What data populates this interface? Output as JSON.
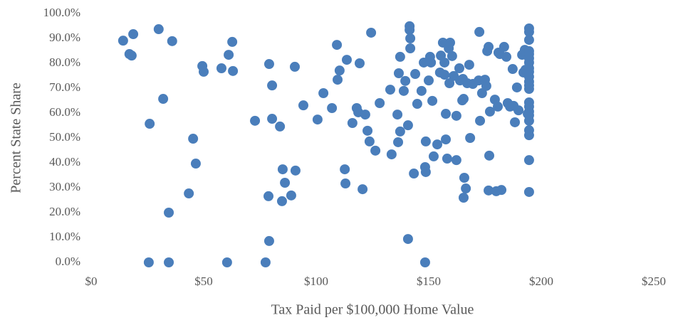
{
  "chart_data": {
    "type": "scatter",
    "x_label": "Tax Paid per $100,000 Home Value",
    "y_label": "Percent State Share",
    "color": "#4a7ebb",
    "grid": false,
    "xlim": [
      0,
      250
    ],
    "xticks": [
      {
        "value": 0,
        "label": "$0"
      },
      {
        "value": 50,
        "label": "$50"
      },
      {
        "value": 100,
        "label": "$100"
      },
      {
        "value": 150,
        "label": "$150"
      },
      {
        "value": 200,
        "label": "$200"
      },
      {
        "value": 250,
        "label": "$250"
      }
    ],
    "ylim": [
      0,
      100
    ],
    "yticks": [
      {
        "value": 0,
        "label": "0.0%"
      },
      {
        "value": 10,
        "label": "10.0%"
      },
      {
        "value": 20,
        "label": "20.0%"
      },
      {
        "value": 30,
        "label": "30.0%"
      },
      {
        "value": 40,
        "label": "40.0%"
      },
      {
        "value": 50,
        "label": "50.0%"
      },
      {
        "value": 60,
        "label": "60.0%"
      },
      {
        "value": 70,
        "label": "70.0%"
      },
      {
        "value": 80,
        "label": "80.0%"
      },
      {
        "value": 90,
        "label": "90.0%"
      },
      {
        "value": 100,
        "label": "100.0%"
      }
    ],
    "x": [
      14.2,
      18.7,
      17,
      18,
      30,
      32,
      36,
      26,
      34.5,
      25.6,
      34.5,
      43.4,
      45.3,
      46.5,
      49.4,
      50,
      57.9,
      61.1,
      62.7,
      63,
      60.4,
      77.5,
      72.8,
      78.8,
      79.1,
      80.4,
      80.4,
      79.1,
      83.9,
      84.8,
      85.1,
      86.1,
      88.9,
      90.8,
      90.5,
      94.3,
      100.6,
      103.2,
      107,
      109.2,
      109.5,
      110.4,
      112.7,
      113,
      113.6,
      116.1,
      118,
      118.7,
      119.3,
      120.6,
      121.8,
      122.8,
      123.7,
      124.4,
      126.3,
      128.2,
      132.9,
      133.5,
      136.1,
      136.4,
      136.7,
      137.3,
      137.3,
      138.9,
      139.6,
      141.5,
      141.5,
      141.8,
      141.8,
      140.8,
      140.8,
      143.4,
      144,
      144.9,
      146.8,
      147.8,
      148.4,
      148.4,
      148.7,
      148.7,
      150,
      150.6,
      151,
      151.6,
      152.2,
      153.8,
      155,
      155.4,
      156.3,
      157,
      157,
      157.6,
      157.6,
      158.2,
      158.9,
      159.2,
      159.5,
      160.4,
      161.1,
      162.3,
      162.3,
      163.6,
      163.9,
      164.9,
      165.2,
      165.5,
      165.8,
      166.5,
      165.5,
      167.1,
      168,
      168.4,
      169.6,
      172.2,
      172.5,
      172.8,
      173.7,
      175,
      175.6,
      176,
      176.6,
      176.9,
      176.6,
      177.2,
      179.4,
      180,
      180.7,
      181,
      181.6,
      183.5,
      182.3,
      184.5,
      185.1,
      186.1,
      187.3,
      187.7,
      188.3,
      189.2,
      189.9,
      191.5,
      192.7,
      192.1,
      193,
      193.7,
      194,
      194.6,
      194.6,
      194.6,
      194.6,
      194.6,
      194.6,
      194.6,
      194.6,
      194.6,
      194.6,
      194.6,
      194.6,
      194.6,
      194.6,
      194.6,
      194.6,
      194.6,
      194.6,
      194.6,
      194.6,
      194.6,
      194.6
    ],
    "values": [
      89.1,
      91.7,
      83.7,
      83.1,
      93.7,
      65.7,
      88.9,
      55.7,
      20,
      0,
      0,
      27.7,
      49.7,
      39.7,
      78.9,
      76.6,
      78,
      83.4,
      88.6,
      76.9,
      0,
      0,
      56.9,
      26.6,
      79.7,
      71.1,
      57.7,
      8.6,
      54.6,
      24.6,
      37.4,
      32,
      26.9,
      36.9,
      78.6,
      63.1,
      57.4,
      68,
      62,
      87.4,
      73.4,
      77.1,
      37.4,
      31.7,
      81.4,
      56,
      62,
      60.3,
      80,
      29.4,
      59.4,
      52.9,
      48.6,
      92.3,
      44.9,
      64,
      69.4,
      43.4,
      59.4,
      48.3,
      76,
      52.6,
      82.6,
      68.9,
      72.9,
      93.4,
      94.9,
      90,
      86,
      55.1,
      9.4,
      35.7,
      75.7,
      63.7,
      68.9,
      80.3,
      38.3,
      0,
      48.6,
      36.3,
      73.1,
      82.6,
      80.3,
      64.9,
      42.6,
      47.4,
      76.3,
      83.1,
      88.3,
      80.3,
      75.4,
      59.7,
      49.4,
      41.7,
      86,
      72,
      88.3,
      82.9,
      74.9,
      58.9,
      41.1,
      78,
      73.1,
      65.1,
      73.7,
      65.7,
      34,
      29.7,
      26,
      72,
      79.4,
      50,
      71.7,
      73.1,
      92.6,
      56.9,
      68,
      73.4,
      70.9,
      84.9,
      86.6,
      42.9,
      28.9,
      60.6,
      65.4,
      28.6,
      62.6,
      84.3,
      83.7,
      86.6,
      29.1,
      82.6,
      64,
      62.6,
      77.7,
      62.9,
      56.3,
      70.3,
      61.1,
      83.4,
      85.4,
      76.3,
      77.4,
      76.6,
      59.7,
      94,
      92.6,
      89.4,
      84.9,
      83.7,
      82,
      80.3,
      78,
      76.6,
      74.6,
      72.6,
      71.1,
      69.7,
      64.3,
      62.6,
      60.6,
      59.1,
      56.9,
      53.1,
      51.1,
      41.1,
      28.3
    ]
  }
}
